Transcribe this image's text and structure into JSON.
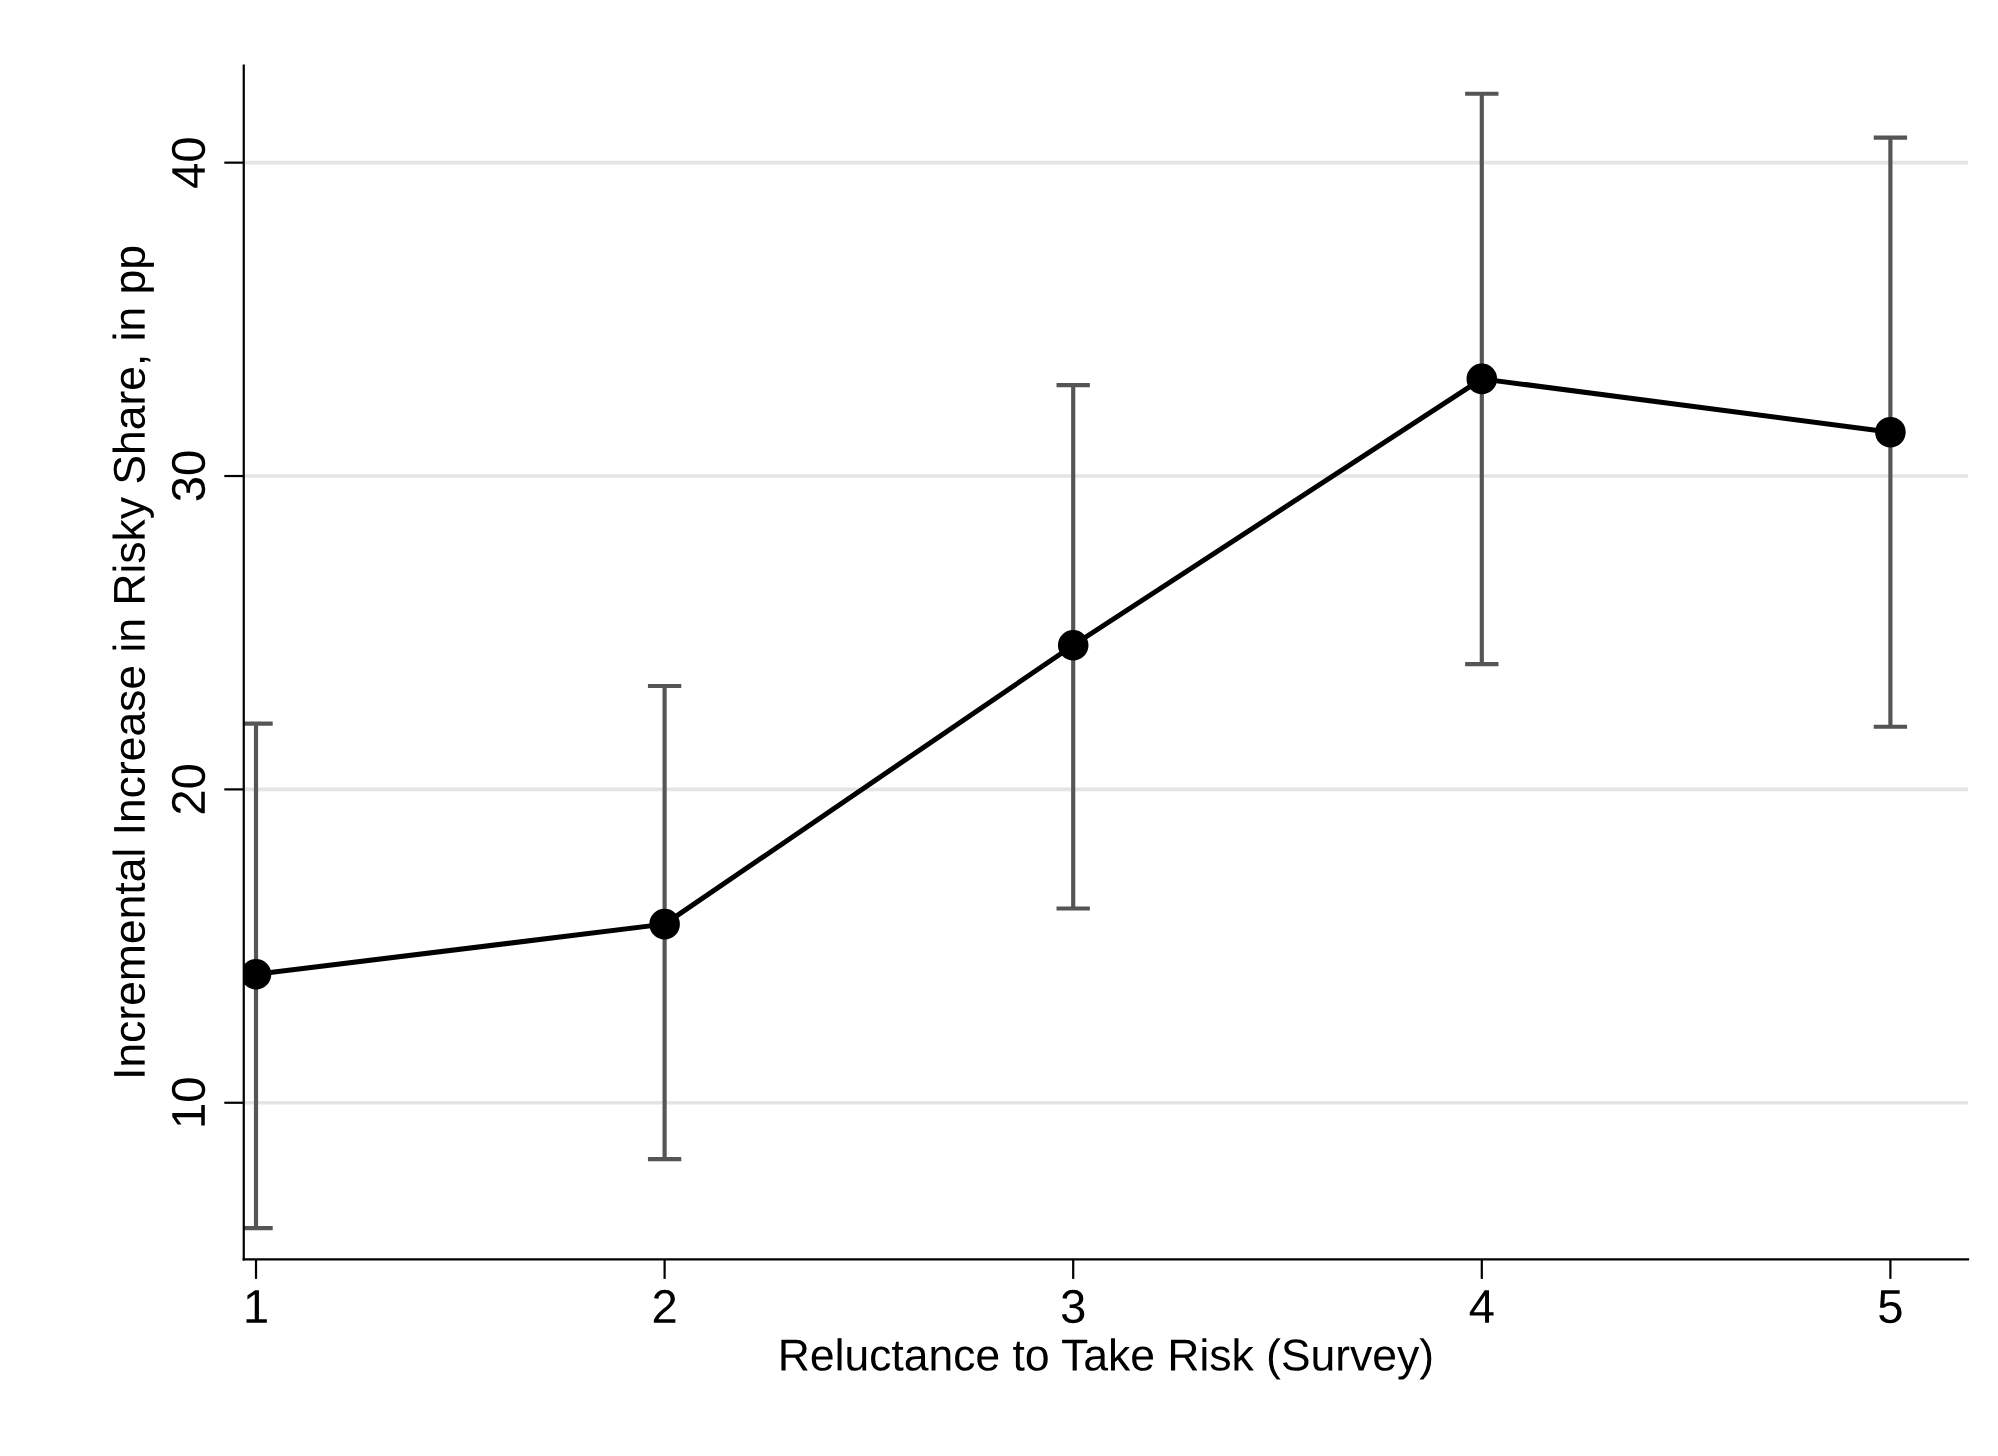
{
  "chart_data": {
    "type": "line",
    "xlabel": "Reluctance to Take Risk (Survey)",
    "ylabel": "Incremental Increase in Risky Share, in pp",
    "x": [
      1,
      2,
      3,
      4,
      5
    ],
    "series": [
      {
        "color": "#000000",
        "values": [
          14.1,
          15.7,
          24.6,
          33.1,
          31.4
        ],
        "errors": [
          [
            6.0,
            22.1
          ],
          [
            8.2,
            23.3
          ],
          [
            16.2,
            32.9
          ],
          [
            24.0,
            42.2
          ],
          [
            22.0,
            40.8
          ]
        ]
      }
    ],
    "xlim": [
      0.97,
      5.19
    ],
    "ylim": [
      5,
      43.1
    ],
    "xticks": [
      1,
      2,
      3,
      4,
      5
    ],
    "yticks": [
      10,
      20,
      30,
      40
    ],
    "grid": "y",
    "marker": "circle",
    "line_style": "solid",
    "legend": false
  }
}
